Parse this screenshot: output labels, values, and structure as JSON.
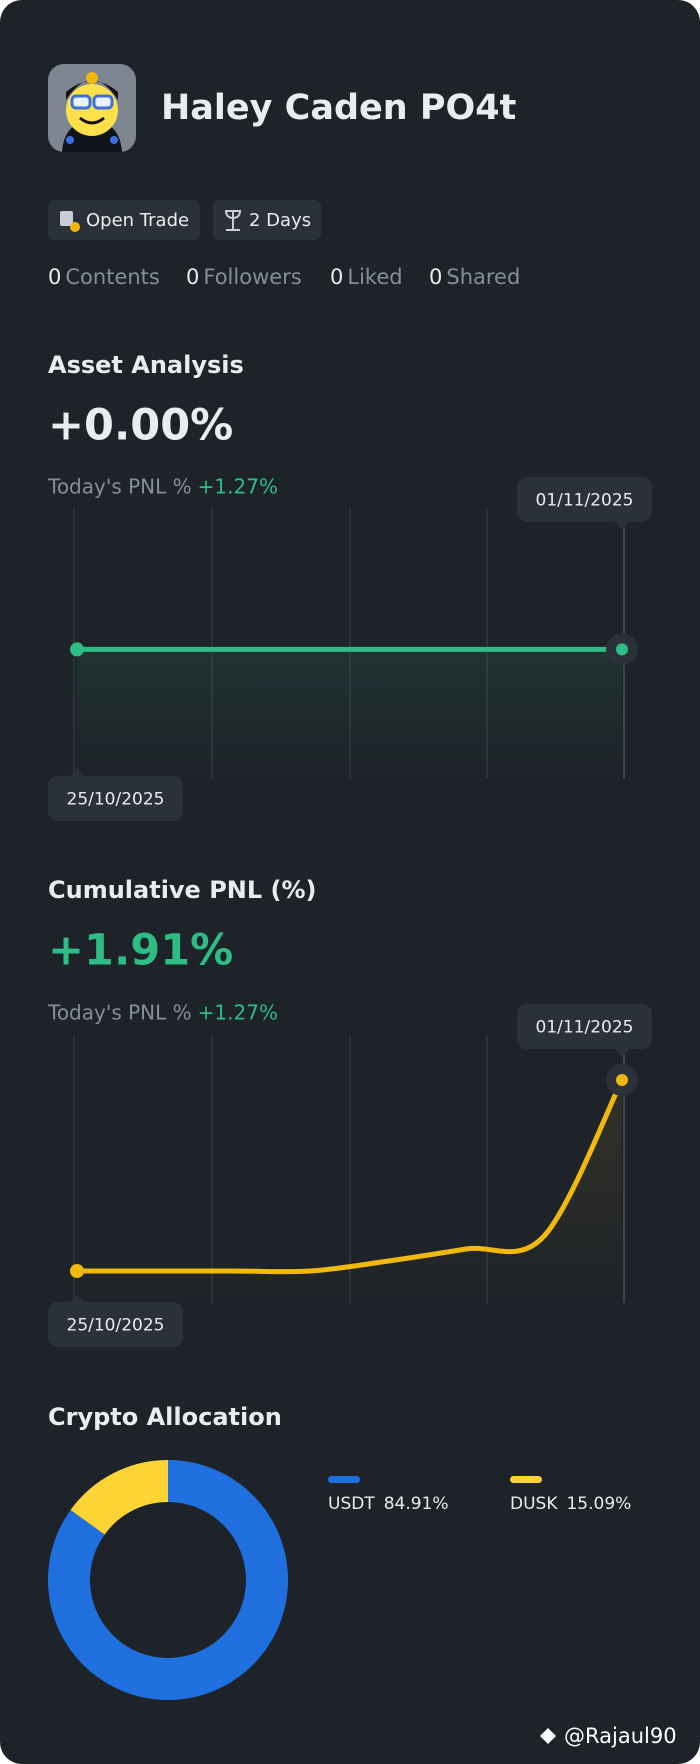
{
  "profile": {
    "name": "Haley Caden PO4t",
    "badges": [
      "Open Trade",
      "2 Days"
    ],
    "stats": [
      {
        "value": 0,
        "label": "Contents"
      },
      {
        "value": 0,
        "label": "Followers"
      },
      {
        "value": 0,
        "label": "Liked"
      },
      {
        "value": 0,
        "label": "Shared"
      }
    ]
  },
  "chart_data": [
    {
      "type": "line",
      "title": "Asset Analysis",
      "headline": "+0.00%",
      "pnl_label": "Today's PNL %",
      "pnl_value": "+1.27%",
      "categories": [
        "25/10/2025",
        null,
        null,
        null,
        null,
        null,
        null,
        "01/11/2025"
      ],
      "values": [
        0,
        0,
        0,
        0,
        0,
        0,
        0,
        0
      ],
      "color": "#2ebd85",
      "ylim": [
        -1,
        1.1
      ]
    },
    {
      "type": "line",
      "title": "Cumulative PNL (%)",
      "headline": "+1.91%",
      "pnl_label": "Today's PNL %",
      "pnl_value": "+1.27%",
      "categories": [
        "25/10/2025",
        null,
        null,
        null,
        null,
        null,
        null,
        "01/11/2025"
      ],
      "values": [
        0,
        0,
        0,
        0,
        0.1,
        0.22,
        0.35,
        1.91
      ],
      "color": "#f0b90b",
      "ylim": [
        -0.32,
        2.36
      ]
    },
    {
      "type": "pie",
      "title": "Crypto Allocation",
      "categories": [
        "USDT",
        "DUSK"
      ],
      "values": [
        84.91,
        15.09
      ],
      "value_labels": [
        "84.91%",
        "15.09%"
      ],
      "colors": [
        "#1f6fde",
        "#fcd535"
      ]
    }
  ],
  "watermark": "@Rajaul90"
}
